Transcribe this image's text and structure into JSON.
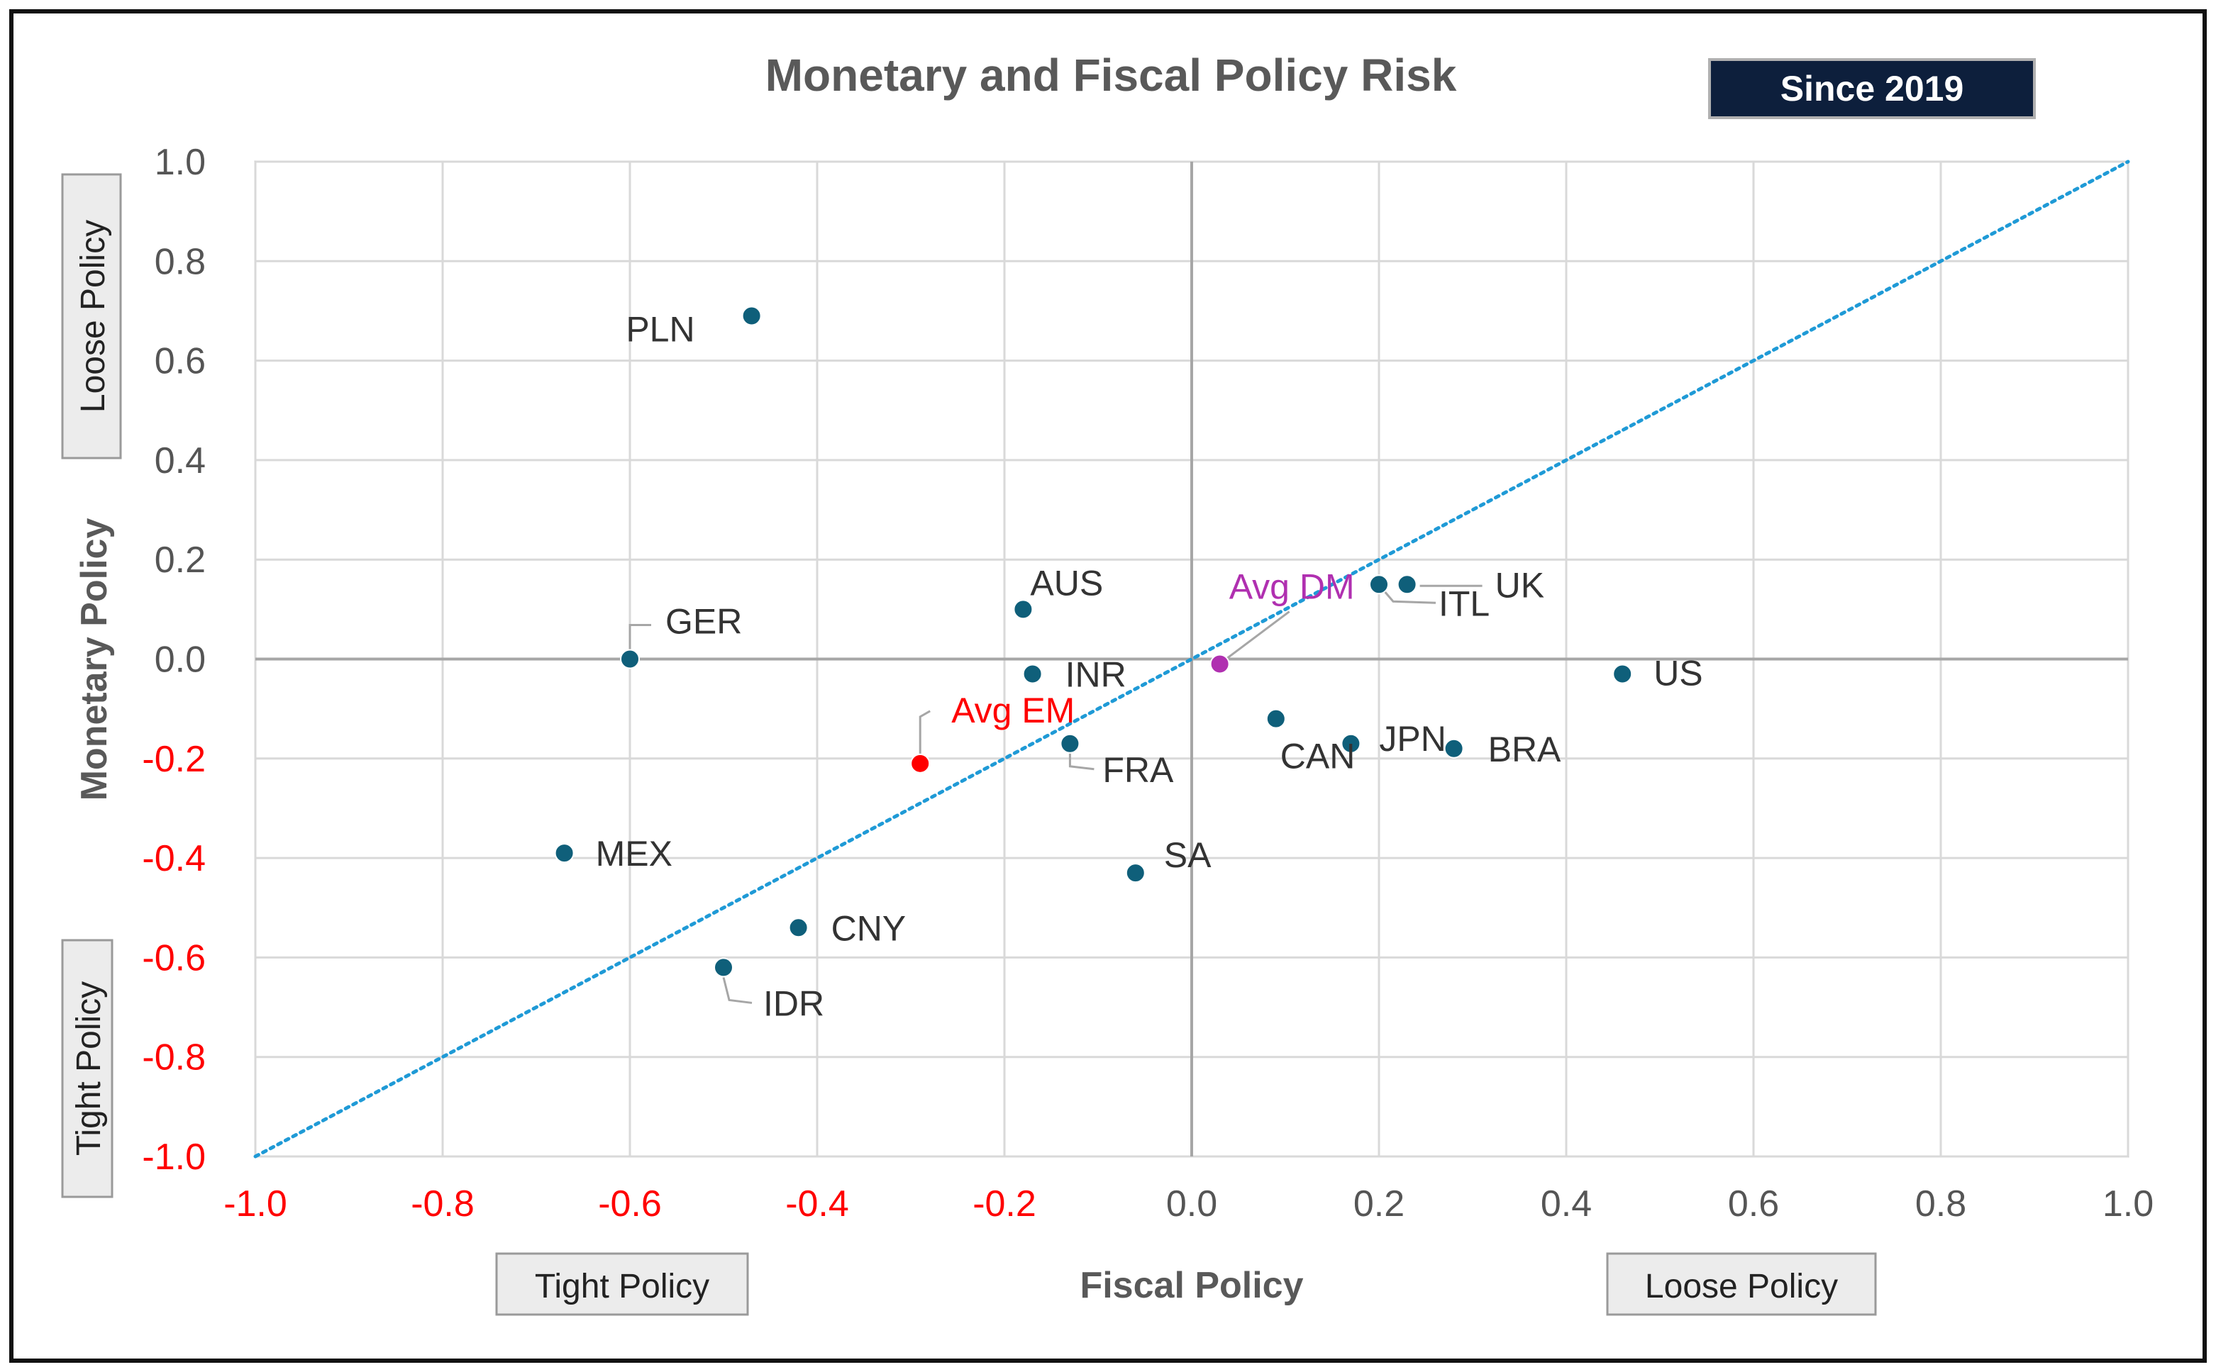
{
  "chart_data": {
    "type": "scatter",
    "title": "Monetary and Fiscal Policy Risk",
    "badge": "Since 2019",
    "xlabel": "Fiscal Policy",
    "ylabel": "Monetary Policy",
    "xlim": [
      -1.0,
      1.0
    ],
    "ylim": [
      -1.0,
      1.0
    ],
    "xticks": [
      "-1.0",
      "-0.8",
      "-0.6",
      "-0.4",
      "-0.2",
      "0.0",
      "0.2",
      "0.4",
      "0.6",
      "0.8",
      "1.0"
    ],
    "yticks": [
      "1.0",
      "0.8",
      "0.6",
      "0.4",
      "0.2",
      "0.0",
      "-0.2",
      "-0.4",
      "-0.6",
      "-0.8",
      "-1.0"
    ],
    "grid": true,
    "reference_line": {
      "type": "diagonal",
      "from": [
        -1.0,
        -1.0
      ],
      "to": [
        1.0,
        1.0
      ],
      "style": "dotted",
      "color": "#1f9ad6"
    },
    "axis_notes": {
      "x_low": "Tight Policy",
      "x_high": "Loose Policy",
      "y_high": "Loose Policy",
      "y_low": "Tight Policy"
    },
    "colors": {
      "point": "#0f5f7a",
      "avg_em": "#ff0000",
      "avg_dm": "#b030b0",
      "negative_tick": "#ff0000",
      "positive_tick": "#555555",
      "badge_bg": "#0d1f3c",
      "title": "#595959"
    },
    "points": [
      {
        "label": "PLN",
        "x": -0.47,
        "y": 0.69,
        "kind": "country"
      },
      {
        "label": "AUS",
        "x": -0.18,
        "y": 0.1,
        "kind": "country"
      },
      {
        "label": "GER",
        "x": -0.6,
        "y": 0.0,
        "kind": "country"
      },
      {
        "label": "INR",
        "x": -0.17,
        "y": -0.03,
        "kind": "country"
      },
      {
        "label": "Avg EM",
        "x": -0.29,
        "y": -0.21,
        "kind": "avg_em"
      },
      {
        "label": "FRA",
        "x": -0.13,
        "y": -0.17,
        "kind": "country"
      },
      {
        "label": "Avg DM",
        "x": 0.03,
        "y": -0.01,
        "kind": "avg_dm"
      },
      {
        "label": "ITL",
        "x": 0.2,
        "y": 0.15,
        "kind": "country"
      },
      {
        "label": "UK",
        "x": 0.23,
        "y": 0.15,
        "kind": "country"
      },
      {
        "label": "US",
        "x": 0.46,
        "y": -0.03,
        "kind": "country"
      },
      {
        "label": "CAN",
        "x": 0.09,
        "y": -0.12,
        "kind": "country"
      },
      {
        "label": "JPN",
        "x": 0.17,
        "y": -0.17,
        "kind": "country"
      },
      {
        "label": "BRA",
        "x": 0.28,
        "y": -0.18,
        "kind": "country"
      },
      {
        "label": "MEX",
        "x": -0.67,
        "y": -0.39,
        "kind": "country"
      },
      {
        "label": "SA",
        "x": -0.06,
        "y": -0.43,
        "kind": "country"
      },
      {
        "label": "CNY",
        "x": -0.42,
        "y": -0.54,
        "kind": "country"
      },
      {
        "label": "IDR",
        "x": -0.5,
        "y": -0.62,
        "kind": "country"
      }
    ]
  }
}
